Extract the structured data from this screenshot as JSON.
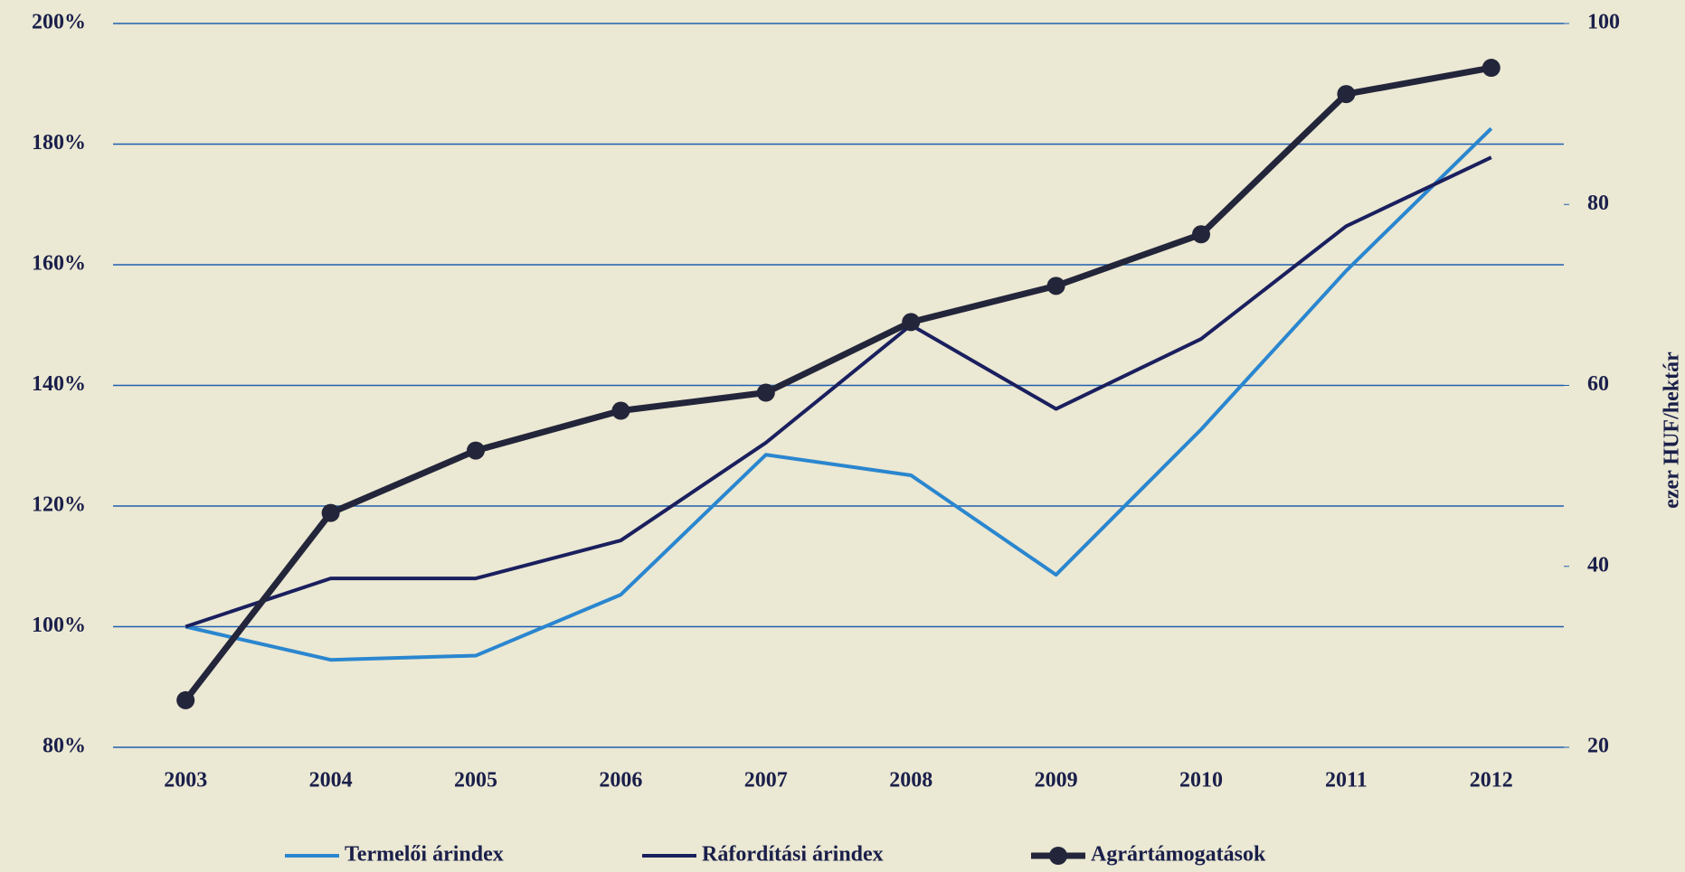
{
  "chart_data": {
    "type": "line",
    "categories": [
      "2003",
      "2004",
      "2005",
      "2006",
      "2007",
      "2008",
      "2009",
      "2010",
      "2011",
      "2012"
    ],
    "series": [
      {
        "name": "Termelői árindex",
        "color": "#2a86cf",
        "values": [
          100,
          94.5,
          95.2,
          105.3,
          128.5,
          125.1,
          108.6,
          132.7,
          159,
          182.6
        ]
      },
      {
        "name": "Ráfordítási árindex",
        "color": "#1a1f5e",
        "values": [
          100,
          108,
          108,
          114.3,
          130.5,
          150,
          136.1,
          147.7,
          166.4,
          177.8
        ]
      },
      {
        "name": "Agrártámogatások",
        "color": "#23253a",
        "axis": "y2",
        "marker": "circle",
        "values": [
          25.2,
          45.9,
          52.8,
          57.2,
          59.2,
          67,
          71,
          76.7,
          92.2,
          95.1
        ]
      }
    ],
    "ylim": [
      80,
      200
    ],
    "yticks": [
      {
        "value": 80,
        "label": "80%"
      },
      {
        "value": 100,
        "label": "100%"
      },
      {
        "value": 120,
        "label": "120%"
      },
      {
        "value": 140,
        "label": "140%"
      },
      {
        "value": 160,
        "label": "160%"
      },
      {
        "value": 180,
        "label": "180%"
      },
      {
        "value": 200,
        "label": "200%"
      }
    ],
    "y2lim": [
      20,
      100
    ],
    "y2ticks": [
      20,
      40,
      60,
      80,
      100
    ],
    "y2label": "ezer HUF/hektár",
    "grid": true,
    "legend": "bottom"
  }
}
